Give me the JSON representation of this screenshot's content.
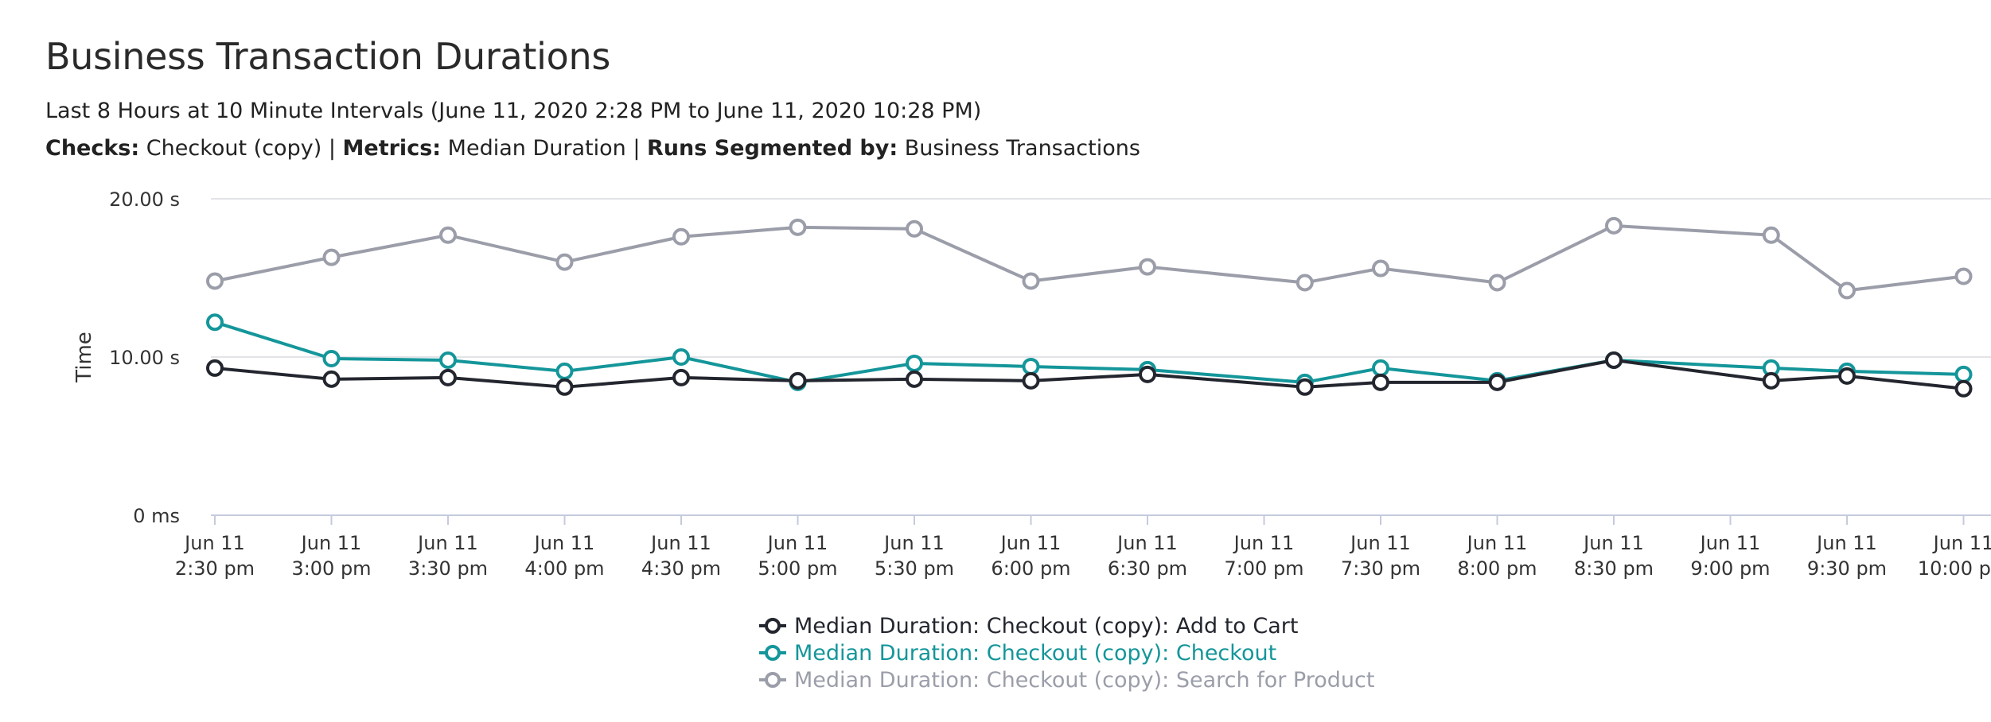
{
  "header": {
    "title": "Business Transaction Durations",
    "subtitle": "Last 8 Hours at 10 Minute Intervals (June 11, 2020 2:28 PM to June 11, 2020 10:28 PM)",
    "checks_label": "Checks:",
    "checks_value": "Checkout (copy)",
    "metrics_label": "Metrics:",
    "metrics_value": "Median Duration",
    "segmented_label": "Runs Segmented by:",
    "segmented_value": "Business Transactions",
    "separator": "|"
  },
  "chart_data": {
    "type": "line",
    "ylabel": "Time",
    "xlabel": "",
    "y_unit": "s",
    "ylim": [
      0,
      20
    ],
    "y_ticks": [
      {
        "value": 0,
        "label": "0 ms"
      },
      {
        "value": 10,
        "label": "10.00 s"
      },
      {
        "value": 20,
        "label": "20.00 s"
      }
    ],
    "grid": "horizontal",
    "legend_position": "bottom-center",
    "x": [
      "Jun 11 2:30 pm",
      "Jun 11 3:00 pm",
      "Jun 11 3:30 pm",
      "Jun 11 4:00 pm",
      "Jun 11 4:30 pm",
      "Jun 11 5:00 pm",
      "Jun 11 5:30 pm",
      "Jun 11 6:00 pm",
      "Jun 11 6:30 pm",
      "Jun 11 7:00 pm",
      "Jun 11 7:30 pm",
      "Jun 11 8:00 pm",
      "Jun 11 8:30 pm",
      "Jun 11 9:00 pm",
      "Jun 11 9:30 pm",
      "Jun 11 10:00 pm"
    ],
    "x_ticks": [
      {
        "line1": "Jun 11",
        "line2": "2:30 pm"
      },
      {
        "line1": "Jun 11",
        "line2": "3:00 pm"
      },
      {
        "line1": "Jun 11",
        "line2": "3:30 pm"
      },
      {
        "line1": "Jun 11",
        "line2": "4:00 pm"
      },
      {
        "line1": "Jun 11",
        "line2": "4:30 pm"
      },
      {
        "line1": "Jun 11",
        "line2": "5:00 pm"
      },
      {
        "line1": "Jun 11",
        "line2": "5:30 pm"
      },
      {
        "line1": "Jun 11",
        "line2": "6:00 pm"
      },
      {
        "line1": "Jun 11",
        "line2": "6:30 pm"
      },
      {
        "line1": "Jun 11",
        "line2": "7:00 pm"
      },
      {
        "line1": "Jun 11",
        "line2": "7:30 pm"
      },
      {
        "line1": "Jun 11",
        "line2": "8:00 pm"
      },
      {
        "line1": "Jun 11",
        "line2": "8:30 pm"
      },
      {
        "line1": "Jun 11",
        "line2": "9:00 pm"
      },
      {
        "line1": "Jun 11",
        "line2": "9:30 pm"
      },
      {
        "line1": "Jun 11",
        "line2": "10:00 pm"
      }
    ],
    "series": [
      {
        "name": "Median Duration: Checkout (copy): Add to Cart",
        "color": "#23262e",
        "points": [
          {
            "x": 0,
            "y": 9.3
          },
          {
            "x": 1,
            "y": 8.6
          },
          {
            "x": 2,
            "y": 8.7
          },
          {
            "x": 3,
            "y": 8.1
          },
          {
            "x": 4,
            "y": 8.7
          },
          {
            "x": 5,
            "y": 8.5
          },
          {
            "x": 6,
            "y": 8.6
          },
          {
            "x": 7,
            "y": 8.5
          },
          {
            "x": 8,
            "y": 8.9
          },
          {
            "x": 9.35,
            "y": 8.1
          },
          {
            "x": 10,
            "y": 8.4
          },
          {
            "x": 11,
            "y": 8.4
          },
          {
            "x": 12,
            "y": 9.8
          },
          {
            "x": 13.35,
            "y": 8.5
          },
          {
            "x": 14,
            "y": 8.8
          },
          {
            "x": 15,
            "y": 8.0
          }
        ]
      },
      {
        "name": "Median Duration: Checkout (copy): Checkout",
        "color": "#14969a",
        "points": [
          {
            "x": 0,
            "y": 12.2
          },
          {
            "x": 1,
            "y": 9.9
          },
          {
            "x": 2,
            "y": 9.8
          },
          {
            "x": 3,
            "y": 9.1
          },
          {
            "x": 4,
            "y": 10.0
          },
          {
            "x": 5,
            "y": 8.4
          },
          {
            "x": 6,
            "y": 9.6
          },
          {
            "x": 7,
            "y": 9.4
          },
          {
            "x": 8,
            "y": 9.2
          },
          {
            "x": 9.35,
            "y": 8.4
          },
          {
            "x": 10,
            "y": 9.3
          },
          {
            "x": 11,
            "y": 8.5
          },
          {
            "x": 12,
            "y": 9.8
          },
          {
            "x": 13.35,
            "y": 9.3
          },
          {
            "x": 14,
            "y": 9.1
          },
          {
            "x": 15,
            "y": 8.9
          }
        ]
      },
      {
        "name": "Median Duration: Checkout (copy): Search for Product",
        "color": "#9b9ea9",
        "points": [
          {
            "x": 0,
            "y": 14.8
          },
          {
            "x": 1,
            "y": 16.3
          },
          {
            "x": 2,
            "y": 17.7
          },
          {
            "x": 3,
            "y": 16.0
          },
          {
            "x": 4,
            "y": 17.6
          },
          {
            "x": 5,
            "y": 18.2
          },
          {
            "x": 6,
            "y": 18.1
          },
          {
            "x": 7,
            "y": 14.8
          },
          {
            "x": 8,
            "y": 15.7
          },
          {
            "x": 9.35,
            "y": 14.7
          },
          {
            "x": 10,
            "y": 15.6
          },
          {
            "x": 11,
            "y": 14.7
          },
          {
            "x": 12,
            "y": 18.3
          },
          {
            "x": 13.35,
            "y": 17.7
          },
          {
            "x": 14,
            "y": 14.2
          },
          {
            "x": 15,
            "y": 15.1
          }
        ]
      }
    ]
  }
}
